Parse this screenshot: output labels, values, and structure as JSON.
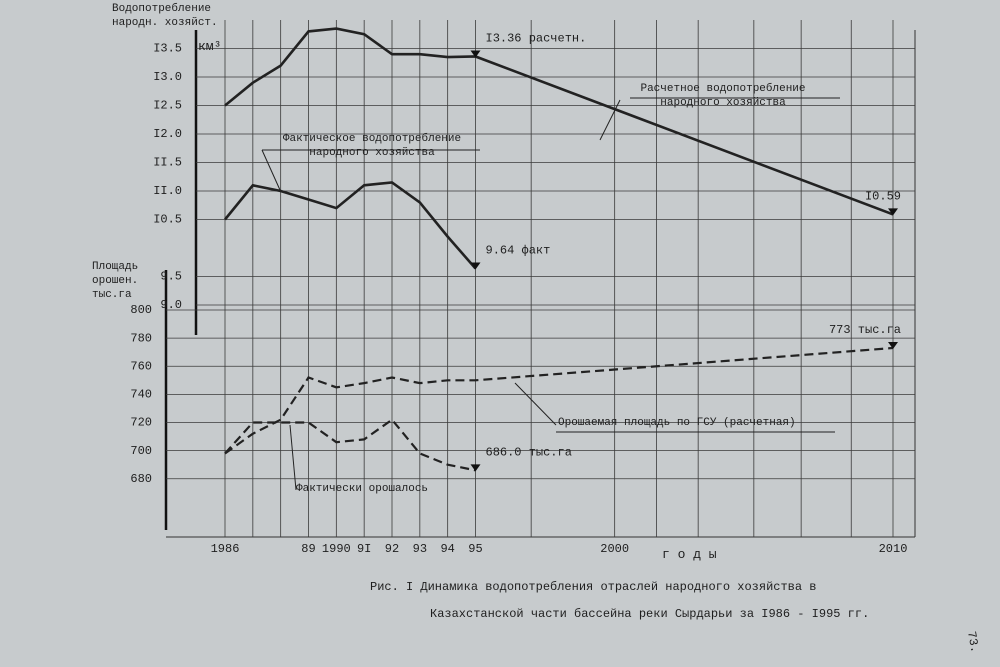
{
  "chart_data": {
    "type": "line",
    "ytitle": "Водопотребление народн. хозяйст.",
    "yunit": "км³",
    "y2title": "Площадь орошен. тыс.га",
    "xtitle": "г о д ы",
    "caption": [
      "Рис. I  Динамика водопотребления отраслей народного хозяйства в",
      "Казахстанской части бассейна реки Сырдарьи за I986 - I995 гг."
    ],
    "page_number": "73.",
    "x": [
      1986,
      1987,
      1988,
      1989,
      1990,
      1991,
      1992,
      1993,
      1994,
      1995,
      2010
    ],
    "xlim": [
      1986,
      2010
    ],
    "xticks": [
      1986,
      {
        "value": 1989,
        "label": "89"
      },
      1990,
      {
        "value": 1991,
        "label": "9I"
      },
      {
        "value": 1992,
        "label": "92"
      },
      {
        "value": 1993,
        "label": "93"
      },
      {
        "value": 1994,
        "label": "94"
      },
      {
        "value": 1995,
        "label": "95"
      },
      2000,
      2010
    ],
    "xgrid": [
      1987,
      1988,
      1997,
      2001.5,
      2003,
      2005,
      2006.7,
      2008.5
    ],
    "ylim": [
      9.0,
      14.0
    ],
    "yticks": [
      {
        "value": 13.5,
        "label": "I3.5"
      },
      {
        "value": 13.0,
        "label": "I3.0"
      },
      {
        "value": 12.5,
        "label": "I2.5"
      },
      {
        "value": 12.0,
        "label": "I2.0"
      },
      {
        "value": 11.5,
        "label": "II.5"
      },
      {
        "value": 11.0,
        "label": "II.0"
      },
      {
        "value": 10.5,
        "label": "I0.5"
      },
      9.5,
      {
        "value": 9.0,
        "label": "9.0"
      }
    ],
    "y2lim": [
      640,
      800
    ],
    "y2ticks": [
      800,
      780,
      760,
      740,
      720,
      700,
      680
    ],
    "grid": true,
    "series": [
      {
        "name": "Расчетное водопотребление народного хозяйства",
        "color": "#222222",
        "dash": false,
        "axis": "y",
        "values": [
          12.5,
          12.9,
          13.2,
          13.8,
          13.85,
          13.75,
          13.4,
          13.4,
          13.35,
          13.36,
          10.59
        ],
        "value_labels": [
          null,
          null,
          null,
          null,
          null,
          null,
          null,
          null,
          null,
          "I3.36 расчетн.",
          "I0.59"
        ]
      },
      {
        "name": "Фактическое водопотребление народного хозяйства",
        "color": "#222222",
        "dash": false,
        "axis": "y",
        "values": [
          10.5,
          11.1,
          11.0,
          10.85,
          10.7,
          11.1,
          11.15,
          10.8,
          10.2,
          9.64,
          null
        ],
        "value_labels": [
          null,
          null,
          null,
          null,
          null,
          null,
          null,
          null,
          null,
          "9.64 факт",
          null
        ]
      },
      {
        "name": "Орошаемая площадь по ГСУ (расчетная)",
        "color": "#222222",
        "dash": true,
        "axis": "y2",
        "values": [
          698,
          712,
          722,
          752,
          745,
          748,
          752,
          748,
          750,
          750,
          773
        ],
        "value_labels": [
          null,
          null,
          null,
          null,
          null,
          null,
          null,
          null,
          null,
          null,
          "773 тыс.га"
        ]
      },
      {
        "name": "Фактически орошалось",
        "color": "#222222",
        "dash": true,
        "axis": "y2",
        "values": [
          698,
          720,
          720,
          720,
          706,
          708,
          722,
          698,
          690,
          686.0,
          null
        ],
        "value_labels": [
          null,
          null,
          null,
          null,
          null,
          null,
          null,
          null,
          null,
          "686.0 тыс.га",
          null
        ]
      }
    ]
  }
}
